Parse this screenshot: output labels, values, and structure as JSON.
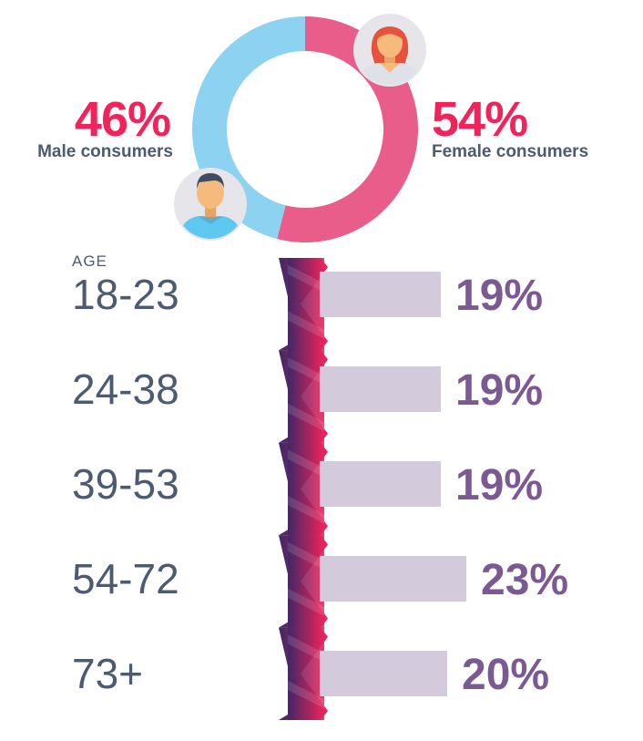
{
  "chart_data": [
    {
      "type": "pie",
      "style": "donut",
      "series": [
        {
          "name": "Male consumers",
          "value": 46,
          "label": "46%",
          "color": "#8ed2f2",
          "icon": "male-avatar-icon"
        },
        {
          "name": "Female consumers",
          "value": 54,
          "label": "54%",
          "color": "#e85d8a",
          "icon": "female-avatar-icon"
        }
      ],
      "value_color": "#f0235a"
    },
    {
      "type": "bar",
      "orientation": "horizontal",
      "caption": "AGE",
      "categories": [
        "18-23",
        "24-38",
        "39-53",
        "54-72",
        "73+"
      ],
      "values": [
        19,
        19,
        19,
        23,
        20
      ],
      "labels": [
        "19%",
        "19%",
        "19%",
        "23%",
        "20%"
      ],
      "bar_color": "#d3cbdc",
      "label_color": "#7b5a93",
      "ribbon_colors": [
        "#3e2766",
        "#f0235a"
      ]
    }
  ]
}
